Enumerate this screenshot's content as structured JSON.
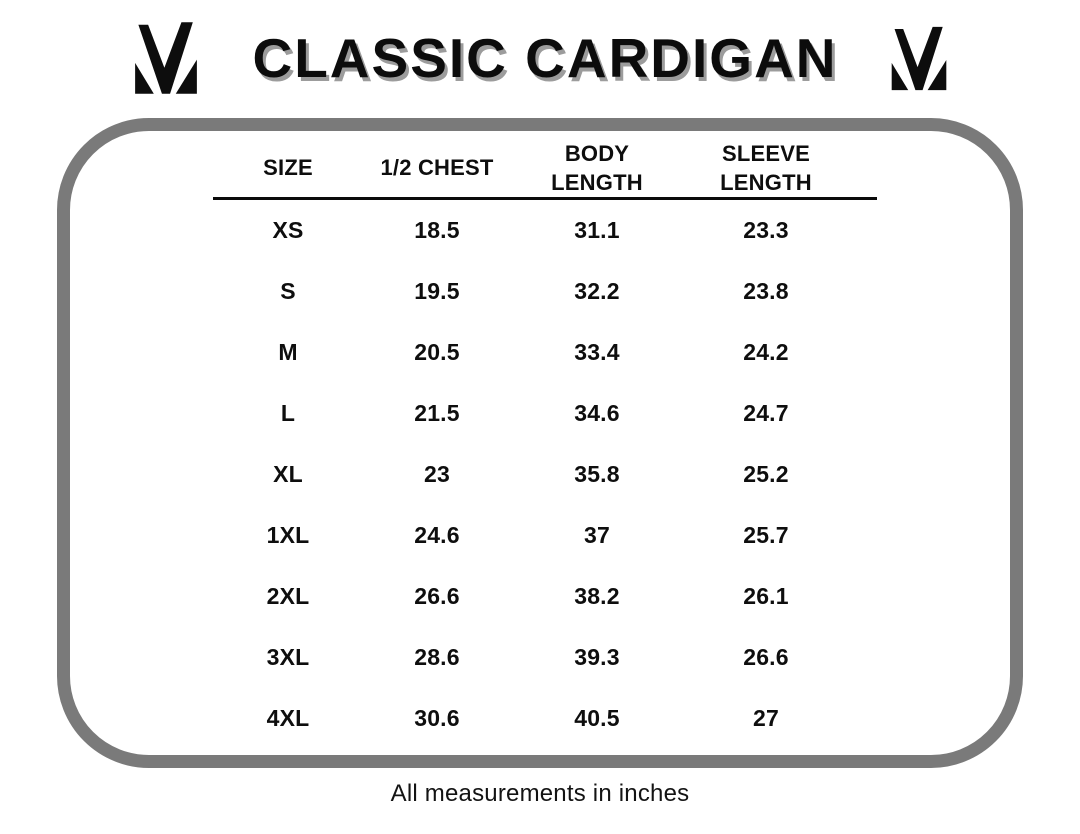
{
  "title": "CLASSIC CARDIGAN",
  "brand": {
    "logo_icon": "m-checkmark-logo"
  },
  "size_chart": {
    "headers": [
      "SIZE",
      "1/2 CHEST",
      "BODY\nLENGTH",
      "SLEEVE\nLENGTH"
    ],
    "rows": [
      [
        "XS",
        "18.5",
        "31.1",
        "23.3"
      ],
      [
        "S",
        "19.5",
        "32.2",
        "23.8"
      ],
      [
        "M",
        "20.5",
        "33.4",
        "24.2"
      ],
      [
        "L",
        "21.5",
        "34.6",
        "24.7"
      ],
      [
        "XL",
        "23",
        "35.8",
        "25.2"
      ],
      [
        "1XL",
        "24.6",
        "37",
        "25.7"
      ],
      [
        "2XL",
        "26.6",
        "38.2",
        "26.1"
      ],
      [
        "3XL",
        "28.6",
        "39.3",
        "26.6"
      ],
      [
        "4XL",
        "30.6",
        "40.5",
        "27"
      ]
    ]
  },
  "footer_note": "All measurements in inches",
  "colors": {
    "border_gray": "#7a7a7a",
    "title_shadow_gray": "#9c9c9c",
    "text_black": "#0e0e0e"
  }
}
